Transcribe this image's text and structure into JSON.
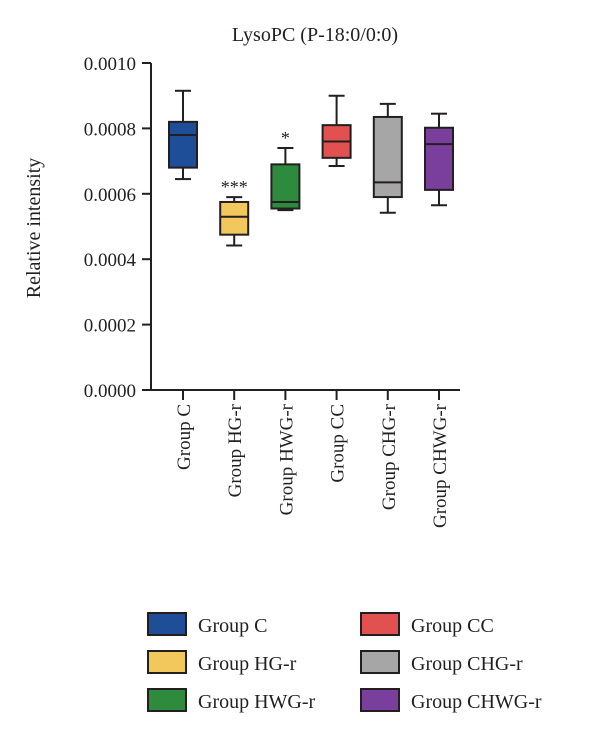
{
  "chart_data": {
    "type": "box",
    "title": "LysoPC (P-18:0/0:0)",
    "ylabel": "Relative intensity",
    "xlabel": "",
    "ylim": [
      0,
      0.001
    ],
    "yticks": [
      "0.0000",
      "0.0002",
      "0.0004",
      "0.0006",
      "0.0008",
      "0.0010"
    ],
    "ytick_values": [
      0,
      0.0002,
      0.0004,
      0.0006,
      0.0008,
      0.001
    ],
    "grid": false,
    "legend_position": "bottom",
    "categories": [
      "Group C",
      "Group HG-r",
      "Group HWG-r",
      "Group CC",
      "Group CHG-r",
      "Group CHWG-r"
    ],
    "boxes": [
      {
        "name": "Group C",
        "color": "#1f4e99",
        "min": 0.000645,
        "q1": 0.00068,
        "median": 0.00078,
        "q3": 0.00082,
        "max": 0.000915,
        "annotation": ""
      },
      {
        "name": "Group HG-r",
        "color": "#f2c75c",
        "min": 0.000442,
        "q1": 0.000475,
        "median": 0.00053,
        "q3": 0.000575,
        "max": 0.00059,
        "annotation": "***"
      },
      {
        "name": "Group HWG-r",
        "color": "#2e8b3e",
        "min": 0.00055,
        "q1": 0.000555,
        "median": 0.000575,
        "q3": 0.00069,
        "max": 0.00074,
        "annotation": "*"
      },
      {
        "name": "Group CC",
        "color": "#e0514f",
        "min": 0.000685,
        "q1": 0.00071,
        "median": 0.00076,
        "q3": 0.00081,
        "max": 0.0009,
        "annotation": ""
      },
      {
        "name": "Group CHG-r",
        "color": "#a6a6a6",
        "min": 0.000542,
        "q1": 0.00059,
        "median": 0.000635,
        "q3": 0.000835,
        "max": 0.000875,
        "annotation": ""
      },
      {
        "name": "Group CHWG-r",
        "color": "#7a3f9d",
        "min": 0.000565,
        "q1": 0.000612,
        "median": 0.000752,
        "q3": 0.000802,
        "max": 0.000845,
        "annotation": ""
      }
    ],
    "legend": [
      {
        "label": "Group C",
        "color": "#1f4e99"
      },
      {
        "label": "Group CC",
        "color": "#e0514f"
      },
      {
        "label": "Group HG-r",
        "color": "#f2c75c"
      },
      {
        "label": "Group CHG-r",
        "color": "#a6a6a6"
      },
      {
        "label": "Group HWG-r",
        "color": "#2e8b3e"
      },
      {
        "label": "Group CHWG-r",
        "color": "#7a3f9d"
      }
    ]
  }
}
